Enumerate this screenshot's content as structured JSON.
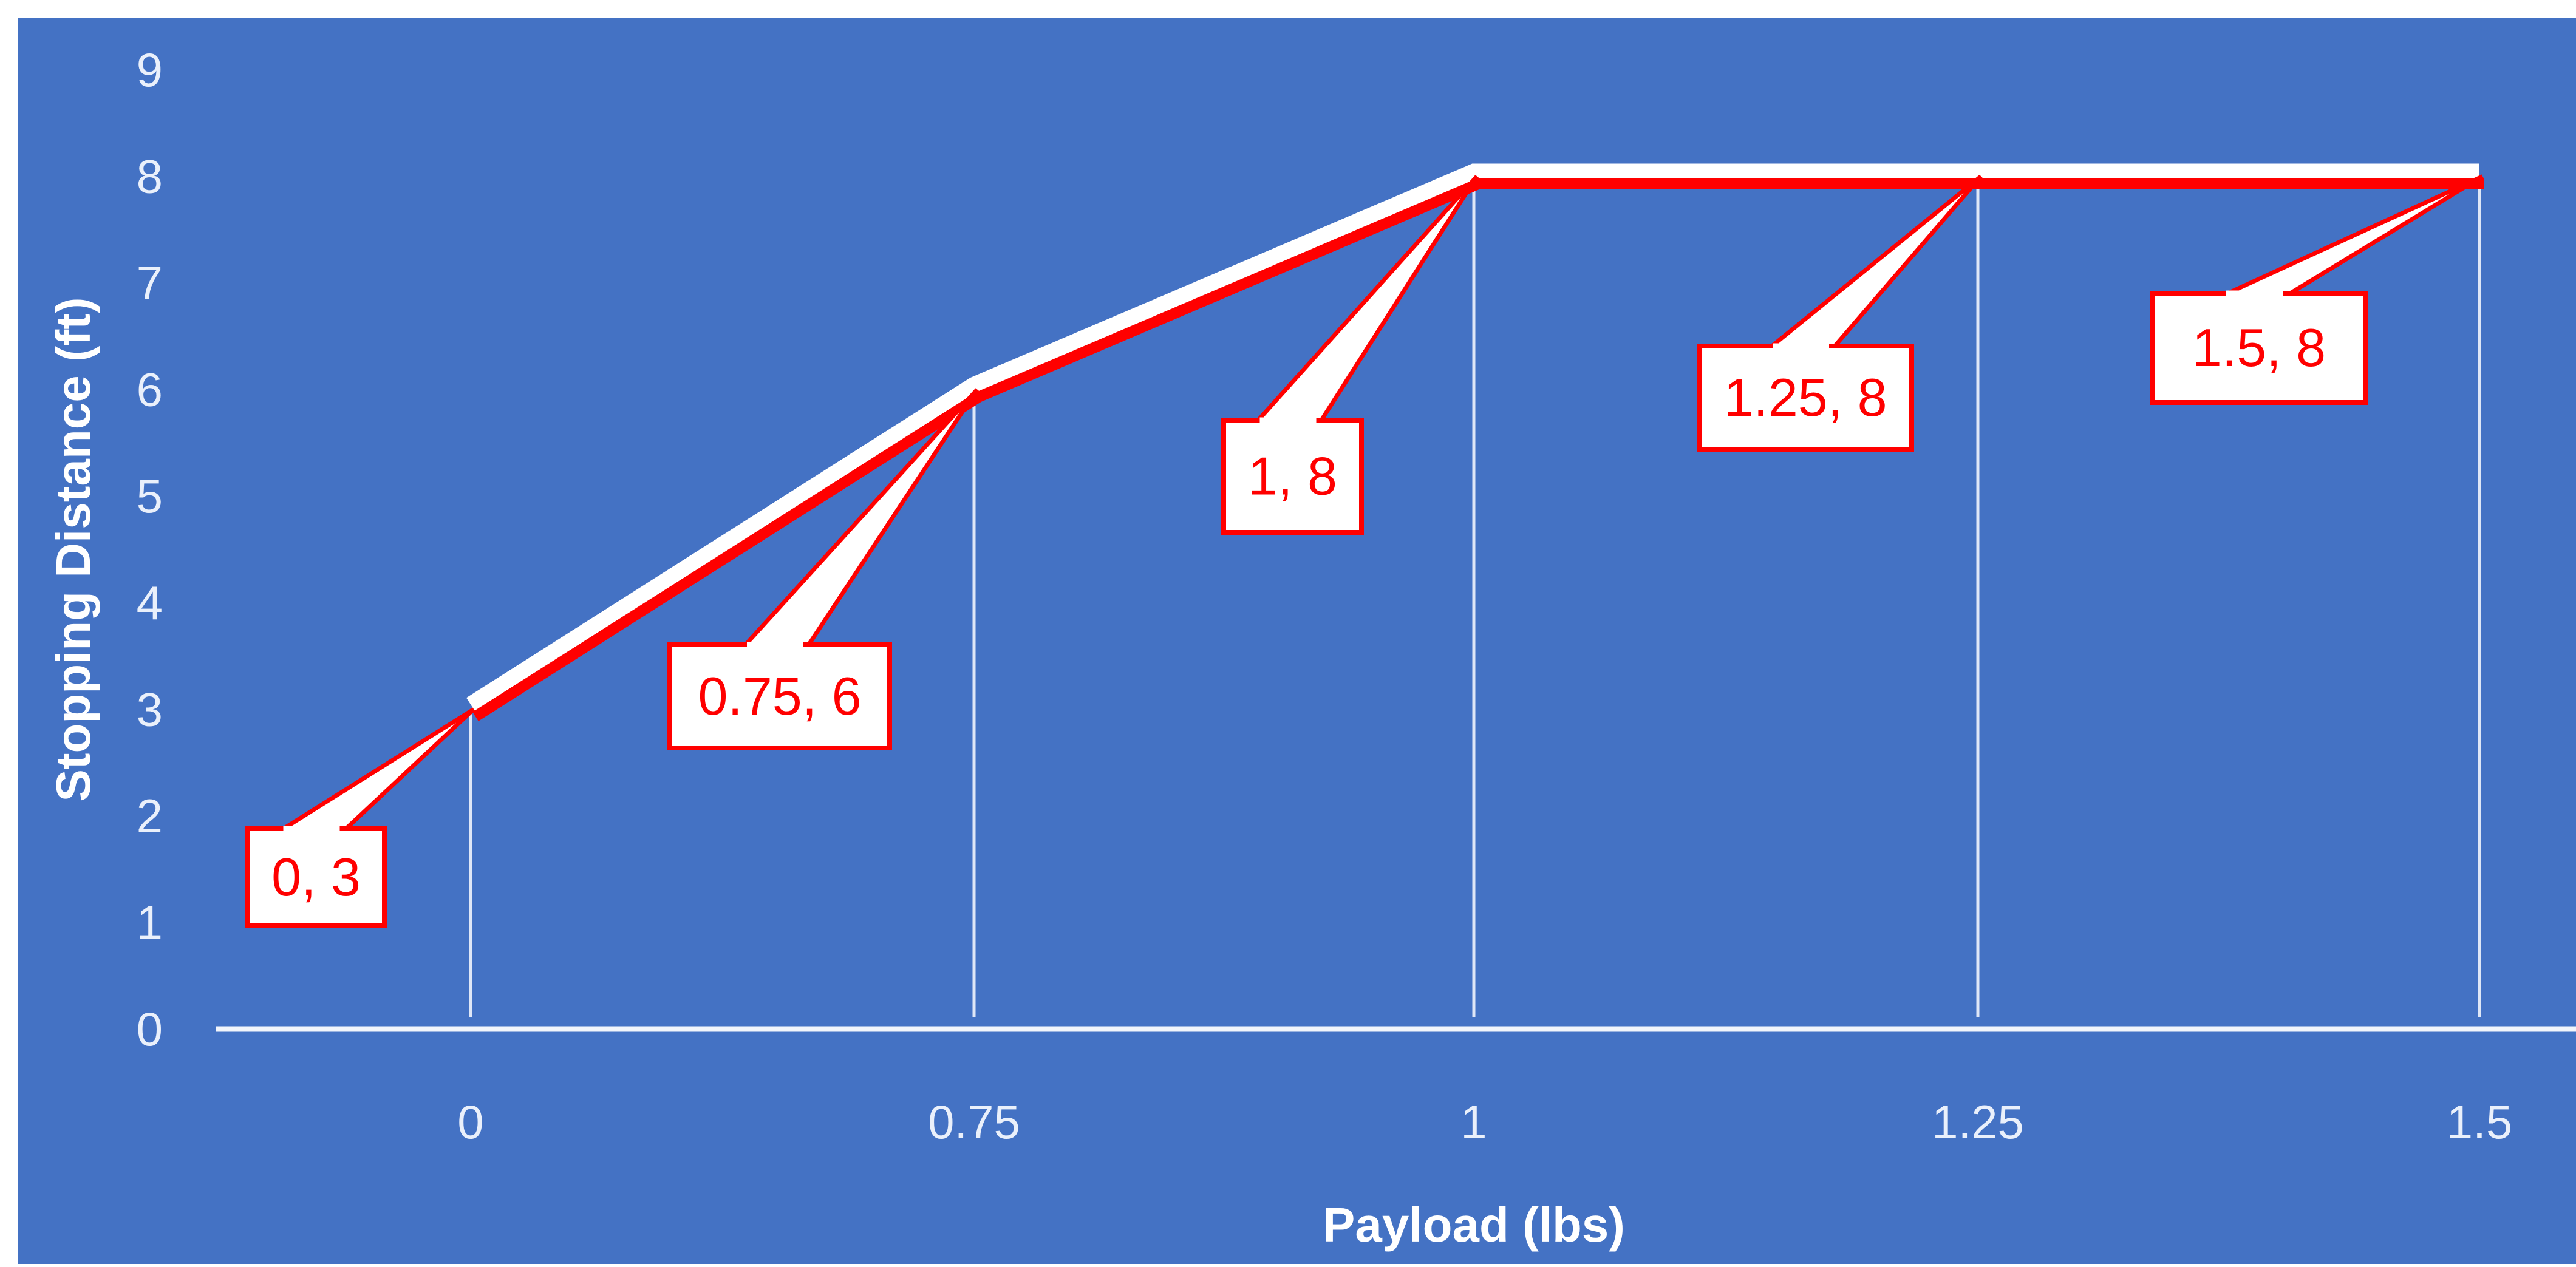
{
  "colors": {
    "background": "#4472c4",
    "line_white": "#ffffff",
    "line_red": "#ff0000",
    "callout_fill": "#ffffff",
    "callout_border": "#ff0000",
    "text_light": "#eaf0fb"
  },
  "chart_data": {
    "type": "line",
    "title": "",
    "xlabel": "Payload (lbs)",
    "ylabel": "Stopping Distance (ft)",
    "x_axis_type": "category",
    "categories": [
      "0",
      "0.75",
      "1",
      "1.25",
      "1.5"
    ],
    "y_ticks": [
      "0",
      "1",
      "2",
      "3",
      "4",
      "5",
      "6",
      "7",
      "8",
      "9"
    ],
    "ylim": [
      0,
      9
    ],
    "grid": false,
    "drop_lines": true,
    "legend": "none",
    "series": [
      {
        "values": [
          3,
          6,
          8,
          8,
          8
        ]
      }
    ],
    "data_labels": [
      "0, 3",
      "0.75, 6",
      "1, 8",
      "1.25, 8",
      "1.5, 8"
    ]
  }
}
